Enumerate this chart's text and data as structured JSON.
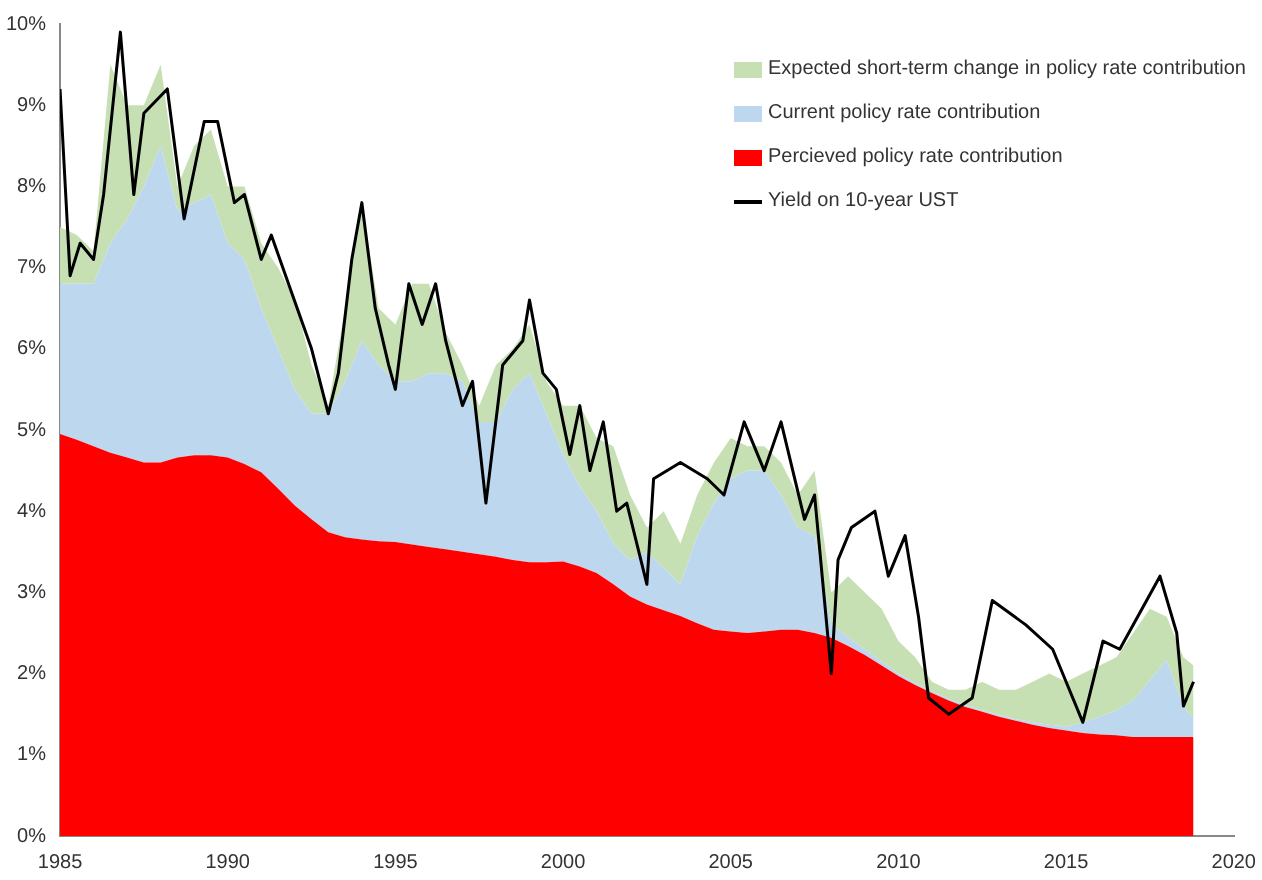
{
  "chart_data": {
    "type": "area",
    "stacked": true,
    "legend": "top right",
    "grid": false,
    "x": [
      1985,
      1985.5,
      1986,
      1986.5,
      1987,
      1987.5,
      1988,
      1988.5,
      1989,
      1989.5,
      1990,
      1990.5,
      1991,
      1991.5,
      1992,
      1992.5,
      1993,
      1993.5,
      1994,
      1994.5,
      1995,
      1995.5,
      1996,
      1996.5,
      1997,
      1997.5,
      1998,
      1998.5,
      1999,
      1999.5,
      2000,
      2000.5,
      2001,
      2001.5,
      2002,
      2002.5,
      2003,
      2003.5,
      2004,
      2004.5,
      2005,
      2005.5,
      2006,
      2006.5,
      2007,
      2007.5,
      2008,
      2008.5,
      2009,
      2009.5,
      2010,
      2010.5,
      2011,
      2011.5,
      2012,
      2012.5,
      2013,
      2013.5,
      2014,
      2014.5,
      2015,
      2015.5,
      2016,
      2016.5,
      2017,
      2017.5,
      2018,
      2018.5,
      2018.8
    ],
    "xlim": [
      1985,
      2020
    ],
    "xticks": [
      1985,
      1990,
      1995,
      2000,
      2005,
      2010,
      2015,
      2020
    ],
    "ylim": [
      0,
      10
    ],
    "yticks": [
      {
        "value": 0,
        "label": "0%"
      },
      {
        "value": 1,
        "label": "1%"
      },
      {
        "value": 2,
        "label": "2%"
      },
      {
        "value": 3,
        "label": "3%"
      },
      {
        "value": 4,
        "label": "4%"
      },
      {
        "value": 5,
        "label": "5%"
      },
      {
        "value": 6,
        "label": "6%"
      },
      {
        "value": 7,
        "label": "7%"
      },
      {
        "value": 8,
        "label": "8%"
      },
      {
        "value": 9,
        "label": "9%"
      },
      {
        "value": 10,
        "label": "10%"
      }
    ],
    "series": [
      {
        "name": "Percieved policy rate contribution",
        "type": "area",
        "color": "#ff0000",
        "values": [
          4.95,
          4.88,
          4.8,
          4.72,
          4.66,
          4.6,
          4.6,
          4.66,
          4.69,
          4.69,
          4.66,
          4.58,
          4.48,
          4.28,
          4.07,
          3.9,
          3.74,
          3.68,
          3.65,
          3.63,
          3.62,
          3.59,
          3.56,
          3.53,
          3.5,
          3.47,
          3.44,
          3.4,
          3.37,
          3.37,
          3.38,
          3.32,
          3.24,
          3.1,
          2.95,
          2.85,
          2.78,
          2.71,
          2.62,
          2.54,
          2.52,
          2.5,
          2.52,
          2.54,
          2.54,
          2.5,
          2.44,
          2.34,
          2.23,
          2.1,
          1.97,
          1.86,
          1.76,
          1.67,
          1.59,
          1.53,
          1.47,
          1.42,
          1.37,
          1.33,
          1.3,
          1.27,
          1.25,
          1.24,
          1.22,
          1.22,
          1.22,
          1.22,
          1.22
        ]
      },
      {
        "name": "Current policy rate contribution",
        "type": "area",
        "color": "#bdd7ee",
        "values": [
          1.85,
          1.92,
          2.0,
          2.58,
          2.94,
          3.4,
          3.9,
          3.04,
          3.11,
          3.21,
          2.64,
          2.52,
          2.02,
          1.72,
          1.43,
          1.3,
          1.46,
          1.92,
          2.45,
          2.17,
          1.98,
          2.01,
          2.14,
          2.17,
          2.1,
          1.63,
          1.66,
          2.1,
          2.33,
          1.83,
          1.32,
          0.98,
          0.76,
          0.5,
          0.45,
          0.65,
          0.52,
          0.39,
          1.08,
          1.56,
          1.88,
          2.0,
          1.98,
          1.66,
          1.26,
          1.2,
          0.16,
          0.11,
          0.07,
          0.05,
          0.03,
          0.02,
          0.02,
          0.02,
          0.02,
          0.02,
          0.02,
          0.02,
          0.03,
          0.04,
          0.05,
          0.13,
          0.22,
          0.31,
          0.45,
          0.7,
          0.95,
          0.37,
          0.23
        ]
      },
      {
        "name": "Expected short-term change in policy rate contribution",
        "type": "area",
        "color": "#c6e0b4",
        "values": [
          0.7,
          0.6,
          0.4,
          2.2,
          1.4,
          1.0,
          1.0,
          0.3,
          0.7,
          0.8,
          0.7,
          0.9,
          0.8,
          1.0,
          1.1,
          0.6,
          0.1,
          0.9,
          1.7,
          0.7,
          0.7,
          1.2,
          1.1,
          0.5,
          0.2,
          0.2,
          0.7,
          0.5,
          0.6,
          0.4,
          0.6,
          1.0,
          0.9,
          1.2,
          0.8,
          0.3,
          0.7,
          0.5,
          0.5,
          0.5,
          0.5,
          0.3,
          0.3,
          0.4,
          0.4,
          0.8,
          0.4,
          0.75,
          0.7,
          0.65,
          0.4,
          0.32,
          0.12,
          0.11,
          0.19,
          0.35,
          0.31,
          0.36,
          0.5,
          0.63,
          0.55,
          0.6,
          0.63,
          0.65,
          0.83,
          0.88,
          0.53,
          0.61,
          0.65
        ]
      },
      {
        "name": "Yield on 10-year UST",
        "type": "line",
        "color": "#000000",
        "x": [
          1985,
          1985.3,
          1985.6,
          1986,
          1986.3,
          1986.8,
          1987.2,
          1987.5,
          1988.2,
          1988.7,
          1989.3,
          1989.7,
          1990.2,
          1990.5,
          1991,
          1991.3,
          1991.9,
          1992.5,
          1993,
          1993.3,
          1993.7,
          1994,
          1994.4,
          1994.8,
          1995,
          1995.4,
          1995.8,
          1996.2,
          1996.5,
          1997,
          1997.3,
          1997.7,
          1998.2,
          1998.8,
          1999,
          1999.4,
          1999.8,
          2000.2,
          2000.5,
          2000.8,
          2001.2,
          2001.6,
          2001.9,
          2002.5,
          2002.7,
          2003.5,
          2004.3,
          2004.8,
          2005.4,
          2006,
          2006.5,
          2007.2,
          2007.5,
          2008,
          2008.2,
          2008.6,
          2009.3,
          2009.7,
          2010.2,
          2010.6,
          2010.9,
          2011.5,
          2012.2,
          2012.8,
          2013.8,
          2014.6,
          2015,
          2015.5,
          2016.1,
          2016.6,
          2017.8,
          2018.3,
          2018.5,
          2018.8
        ],
        "values": [
          9.2,
          6.9,
          7.3,
          7.1,
          7.9,
          9.9,
          7.9,
          8.9,
          9.2,
          7.6,
          8.8,
          8.8,
          7.8,
          7.9,
          7.1,
          7.4,
          6.7,
          6.0,
          5.2,
          5.7,
          7.1,
          7.8,
          6.5,
          5.8,
          5.5,
          6.8,
          6.3,
          6.8,
          6.1,
          5.3,
          5.6,
          4.1,
          5.8,
          6.1,
          6.6,
          5.7,
          5.5,
          4.7,
          5.3,
          4.5,
          5.1,
          4.0,
          4.1,
          3.1,
          4.4,
          4.6,
          4.4,
          4.2,
          5.1,
          4.5,
          5.1,
          3.9,
          4.2,
          2.0,
          3.4,
          3.8,
          4.0,
          3.2,
          3.7,
          2.7,
          1.7,
          1.5,
          1.7,
          2.9,
          2.6,
          2.3,
          1.9,
          1.4,
          2.4,
          2.3,
          3.2,
          2.5,
          1.6,
          1.9
        ]
      }
    ]
  }
}
